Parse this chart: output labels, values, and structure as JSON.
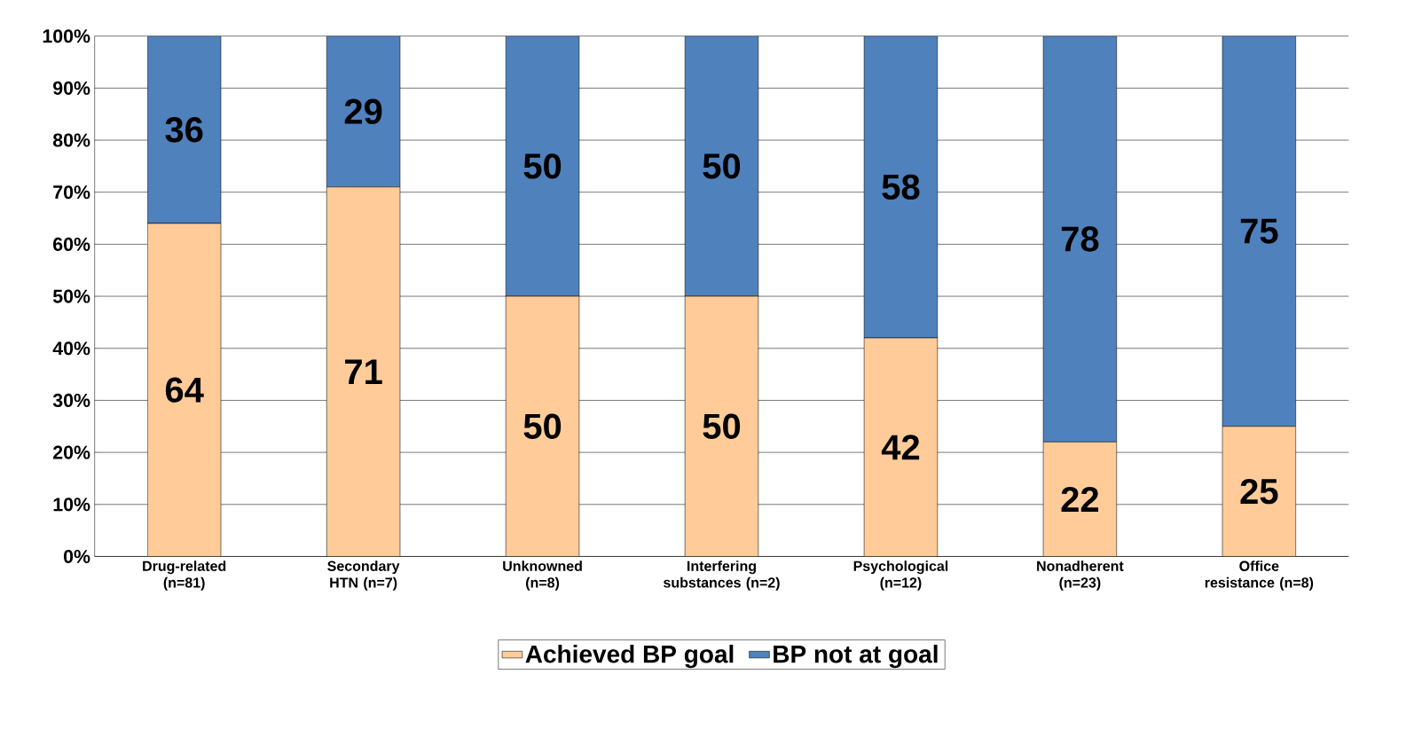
{
  "chart_data": {
    "type": "bar",
    "stacked": true,
    "categories": [
      "Drug-related (n=81)",
      "Secondary HTN (n=7)",
      "Unknowned (n=8)",
      "Interfering substances (n=2)",
      "Psychological (n=12)",
      "Nonadherent (n=23)",
      "Office resistance (n=8)"
    ],
    "series": [
      {
        "name": "Achieved BP goal",
        "color": "#ffcc99",
        "values": [
          64,
          71,
          50,
          50,
          42,
          22,
          25
        ]
      },
      {
        "name": "BP not at goal",
        "color": "#4f81bd",
        "values": [
          36,
          29,
          50,
          50,
          58,
          78,
          75
        ]
      }
    ],
    "ylim": [
      0,
      100
    ],
    "yticks": [
      {
        "value": 0,
        "label": "0%"
      },
      {
        "value": 10,
        "label": "10%"
      },
      {
        "value": 20,
        "label": "20%"
      },
      {
        "value": 30,
        "label": "30%"
      },
      {
        "value": 40,
        "label": "40%"
      },
      {
        "value": 50,
        "label": "50%"
      },
      {
        "value": 60,
        "label": "60%"
      },
      {
        "value": 70,
        "label": "70%"
      },
      {
        "value": 80,
        "label": "80%"
      },
      {
        "value": 90,
        "label": "90%"
      },
      {
        "value": 100,
        "label": "100%"
      }
    ],
    "grid": "y",
    "legend": "bottom",
    "data_labels": true
  }
}
